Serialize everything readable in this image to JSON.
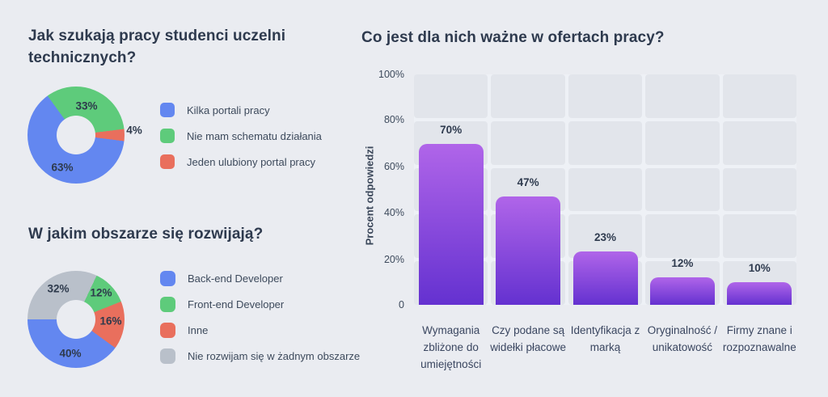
{
  "theme": {
    "background": "#eaecf1",
    "plot_panel": "#e2e5eb",
    "plot_grid_gap": "#eef1f6",
    "title_color": "#2e3a4e",
    "text_color": "#3d4a5c"
  },
  "chart_data": [
    {
      "type": "pie",
      "variant": "donut",
      "title": "Jak szukają pracy studenci uczelni technicznych?",
      "labels": [
        "Kilka portali pracy",
        "Nie mam schematu działania",
        "Jeden ulubiony portal pracy"
      ],
      "values": [
        63,
        33,
        4
      ],
      "value_labels": [
        "63%",
        "33%",
        "4%"
      ],
      "colors": [
        "#6387f0",
        "#5ecb7b",
        "#e96f5d"
      ],
      "legend_position": "right",
      "draw": {
        "start_deg": -36,
        "order": [
          1,
          2,
          0
        ]
      }
    },
    {
      "type": "pie",
      "variant": "donut",
      "title": "W jakim obszarze się rozwijają?",
      "labels": [
        "Back-end Developer",
        "Front-end Developer",
        "Inne",
        "Nie rozwijam się w żadnym obszarze"
      ],
      "values": [
        40,
        12,
        16,
        32
      ],
      "value_labels": [
        "40%",
        "12%",
        "16%",
        "32%"
      ],
      "colors": [
        "#6387f0",
        "#5ecb7b",
        "#e96f5d",
        "#b9c0ca"
      ],
      "legend_position": "right",
      "draw": {
        "start_deg": 270,
        "order": [
          3,
          1,
          2,
          0
        ]
      }
    },
    {
      "type": "bar",
      "title": "Co jest dla nich ważne w ofertach pracy?",
      "categories": [
        "Wymagania zbliżone do umiejętności",
        "Czy podane są widełki płacowe",
        "Identyfikacja z marką",
        "Oryginalność / unikatowość",
        "Firmy znane i rozpoznawalne"
      ],
      "values": [
        70,
        47,
        23,
        12,
        10
      ],
      "value_labels": [
        "70%",
        "47%",
        "23%",
        "12%",
        "10%"
      ],
      "ylabel": "Procent odpowiedzi",
      "yticks": [
        "100%",
        "80%",
        "60%",
        "40%",
        "20%",
        "0"
      ],
      "ylim": [
        0,
        100
      ],
      "grid": true,
      "legend": false,
      "bar_gradient": [
        "#b065e9",
        "#6431d0"
      ]
    }
  ]
}
